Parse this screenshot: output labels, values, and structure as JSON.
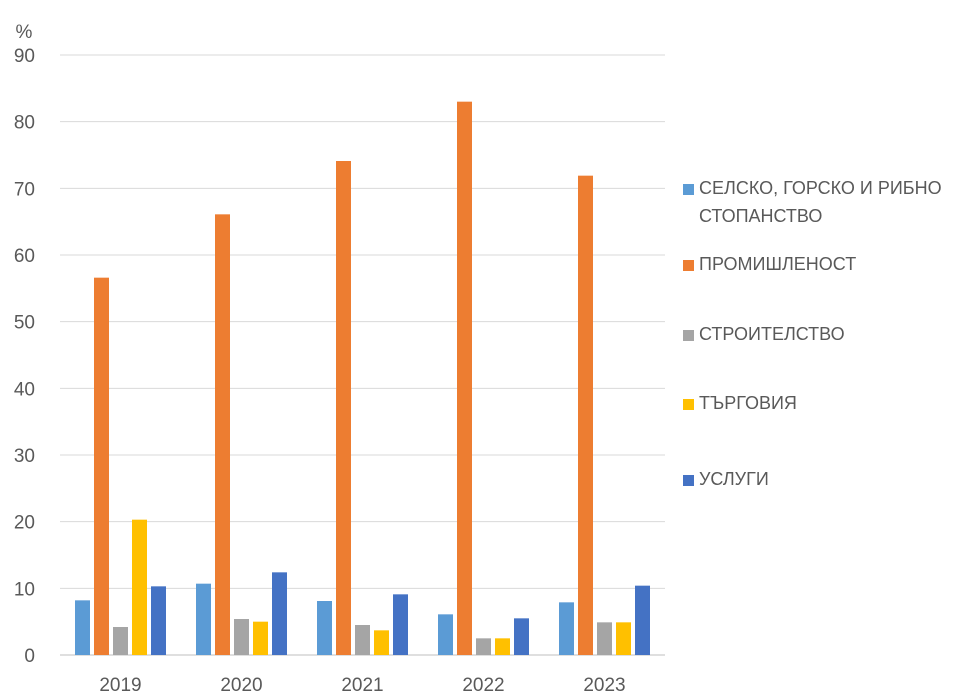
{
  "chart_data": {
    "type": "bar",
    "unit_label": "%",
    "categories": [
      "2019",
      "2020",
      "2021",
      "2022",
      "2023"
    ],
    "ylim": [
      0,
      90
    ],
    "yticks": [
      0,
      10,
      20,
      30,
      40,
      50,
      60,
      70,
      80,
      90
    ],
    "grid": true,
    "legend_position": "right",
    "series": [
      {
        "name": "СЕЛСКО, ГОРСКО И РИБНО СТОПАНСТВО",
        "color": "#5B9BD5",
        "values": [
          8.2,
          10.7,
          8.1,
          6.1,
          7.9
        ]
      },
      {
        "name": "ПРОМИШЛЕНОСТ",
        "color": "#ED7D31",
        "values": [
          56.6,
          66.1,
          74.1,
          83.0,
          71.9
        ]
      },
      {
        "name": "СТРОИТЕЛСТВО",
        "color": "#A5A5A5",
        "values": [
          4.2,
          5.4,
          4.5,
          2.5,
          4.9
        ]
      },
      {
        "name": "ТЪРГОВИЯ",
        "color": "#FFC000",
        "values": [
          20.3,
          5.0,
          3.7,
          2.5,
          4.9
        ]
      },
      {
        "name": "УСЛУГИ",
        "color": "#4472C4",
        "values": [
          10.3,
          12.4,
          9.1,
          5.5,
          10.4
        ]
      }
    ]
  }
}
